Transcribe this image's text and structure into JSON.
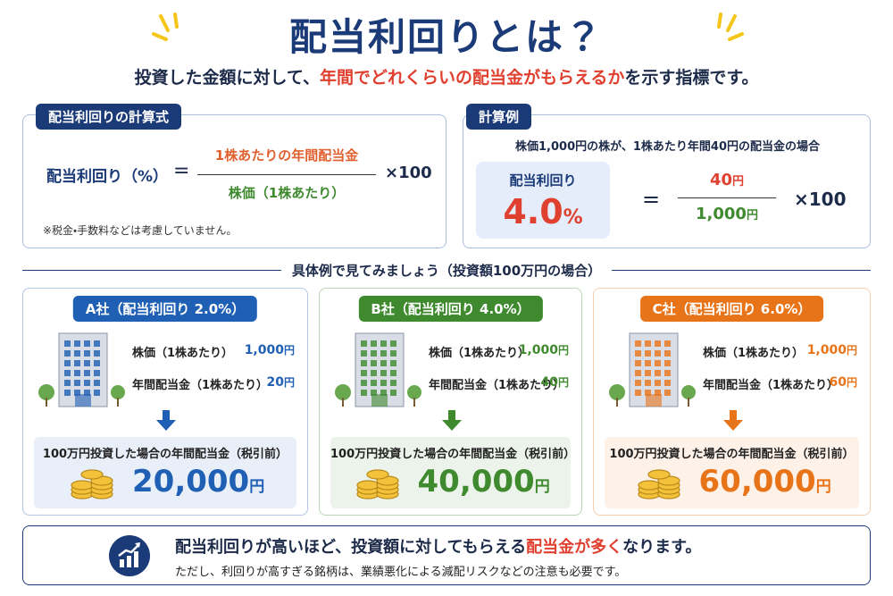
{
  "header": {
    "title": "配当利回りとは？",
    "subtitle": [
      "投資した金額に対して、",
      "年間でどれくらいの配当金がもらえるか",
      "を示す指標です。"
    ]
  },
  "formula": {
    "label": "配当利回りの計算式",
    "lhs": "配当利回り（%）",
    "equals": "=",
    "numerator": "1株あたりの年間配当金",
    "denominator": "株価（1株あたり）",
    "multiplier": "×100",
    "note": "※税金・手数料などは考慮していません。"
  },
  "example": {
    "label": "計算例",
    "premise": "株価1,000円の株が、1株あたり年間40円の配当金の場合",
    "result_label": "配当利回り",
    "result_value": "4.0",
    "result_unit": "%",
    "equals": "=",
    "numerator": "40",
    "numerator_unit": "円",
    "denominator": "1,000",
    "denominator_unit": "円",
    "multiplier": "×100"
  },
  "section_title": "具体例で見てみましょう（投資額100万円の場合）",
  "companies": [
    {
      "title": "A社（配当利回り 2.0%）",
      "color": "#1f5fb4",
      "price_label": "株価（1株あたり）",
      "price": "1,000",
      "price_unit": "円",
      "dividend_label": "年間配当金（1株あたり）",
      "dividend": "20",
      "dividend_unit": "円",
      "total_label": "100万円投資した場合の年間配当金（税引前）",
      "total": "20,000",
      "total_unit": "円"
    },
    {
      "title": "B社（配当利回り 4.0%）",
      "color": "#3f8a2e",
      "price_label": "株価（1株あたり）",
      "price": "1,000",
      "price_unit": "円",
      "dividend_label": "年間配当金（1株あたり）",
      "dividend": "40",
      "dividend_unit": "円",
      "total_label": "100万円投資した場合の年間配当金（税引前）",
      "total": "40,000",
      "total_unit": "円"
    },
    {
      "title": "C社（配当利回り 6.0%）",
      "color": "#e8741a",
      "price_label": "株価（1株あたり）",
      "price": "1,000",
      "price_unit": "円",
      "dividend_label": "年間配当金（1株あたり）",
      "dividend": "60",
      "dividend_unit": "円",
      "total_label": "100万円投資した場合の年間配当金（税引前）",
      "total": "60,000",
      "total_unit": "円"
    }
  ],
  "footer": {
    "line1": [
      "配当利回りが高いほど、投資額に対してもらえる",
      "配当金が多く",
      "なります。"
    ],
    "line2": "ただし、利回りが高すぎる銘柄は、業績悪化による減配リスクなどの注意も必要です。"
  }
}
